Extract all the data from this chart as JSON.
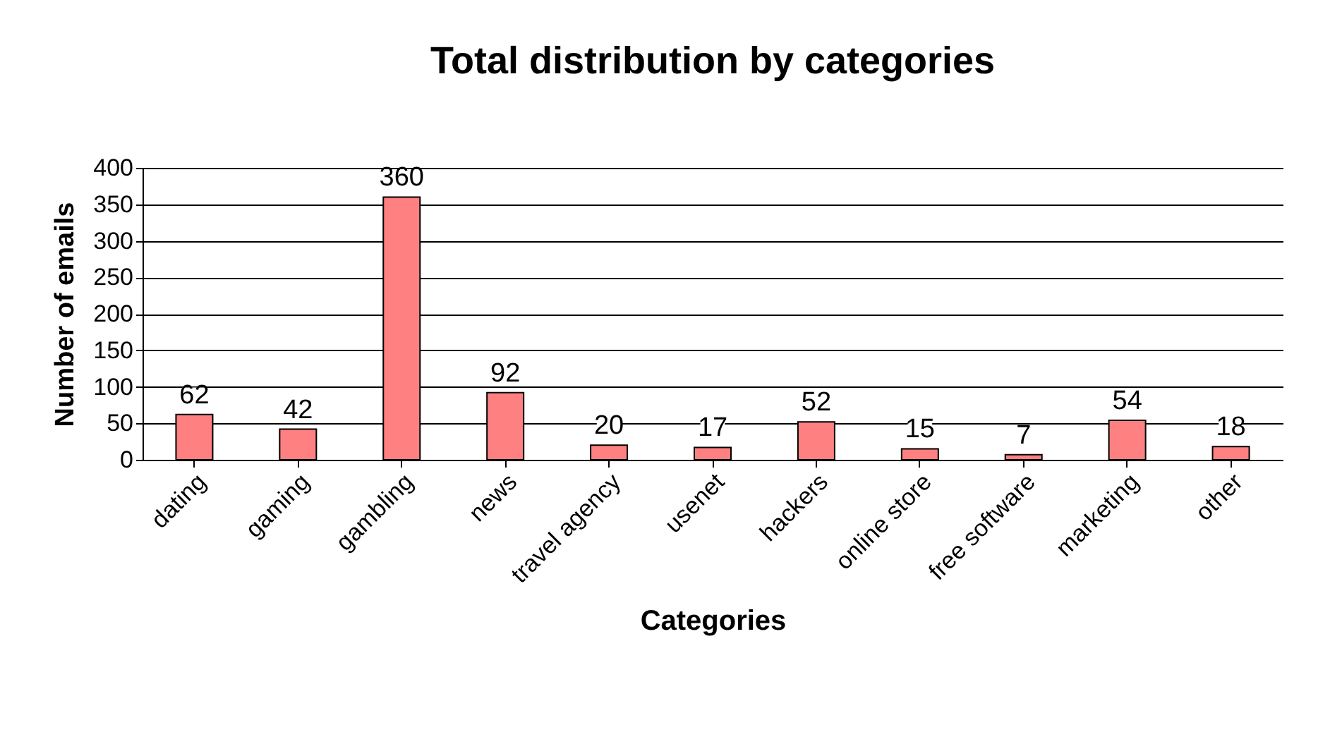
{
  "chart_data": {
    "type": "bar",
    "title": "Total distribution by categories",
    "xlabel": "Categories",
    "ylabel": "Number of emails",
    "categories": [
      "dating",
      "gaming",
      "gambling",
      "news",
      "travel agency",
      "usenet",
      "hackers",
      "online store",
      "free software",
      "marketing",
      "other"
    ],
    "values": [
      62,
      42,
      360,
      92,
      20,
      17,
      52,
      15,
      7,
      54,
      18
    ],
    "color": "#ff8080",
    "ylim": [
      0,
      400
    ],
    "yticks": [
      0,
      50,
      100,
      150,
      200,
      250,
      300,
      350,
      400
    ],
    "grid": "y",
    "data_labels": true
  }
}
